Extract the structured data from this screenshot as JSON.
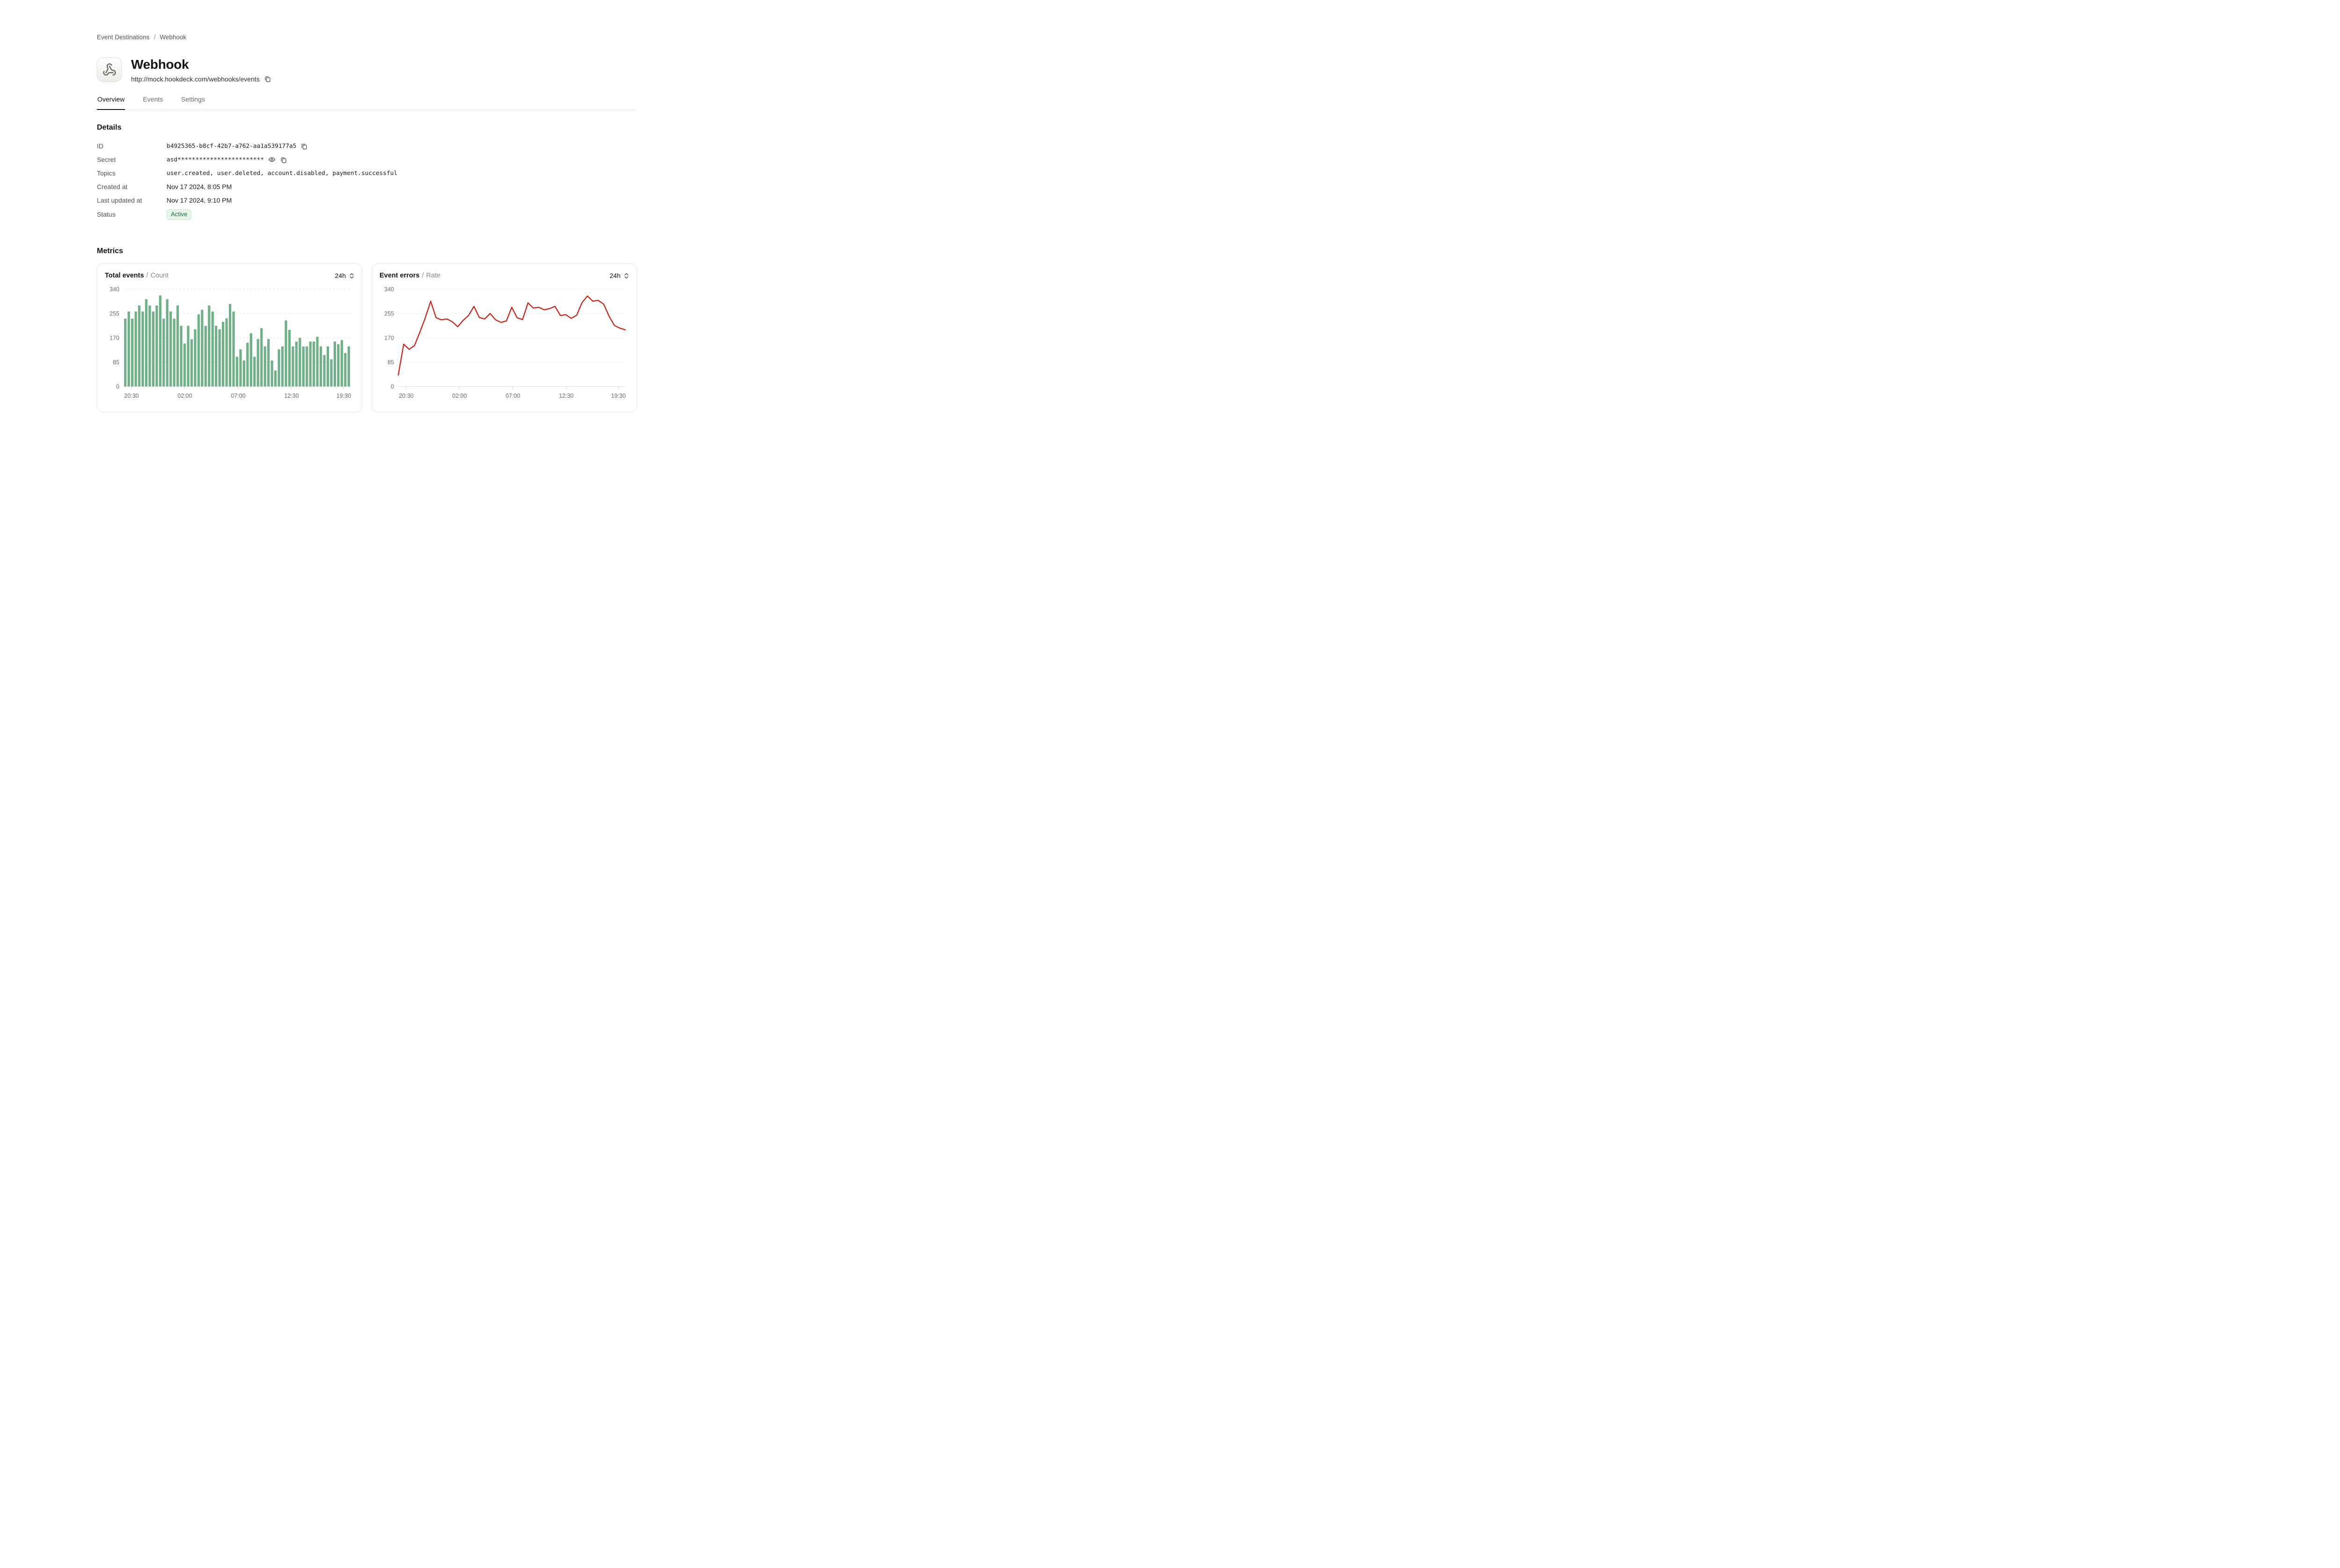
{
  "breadcrumb": {
    "items": [
      "Event Destinations",
      "Webhook"
    ],
    "separator": "/"
  },
  "header": {
    "title": "Webhook",
    "url": "http://mock.hookdeck.com/webhooks/events",
    "icon": "webhook-icon"
  },
  "tabs": [
    {
      "label": "Overview",
      "active": true
    },
    {
      "label": "Events",
      "active": false
    },
    {
      "label": "Settings",
      "active": false
    }
  ],
  "details": {
    "heading": "Details",
    "rows": {
      "id": {
        "label": "ID",
        "value": "b4925365-b8cf-42b7-a762-aa1a539177a5"
      },
      "secret": {
        "label": "Secret",
        "value": "asd************************"
      },
      "topics": {
        "label": "Topics",
        "value": "user.created, user.deleted, account.disabled, payment.successful"
      },
      "created_at": {
        "label": "Created at",
        "value": "Nov 17 2024, 8:05 PM"
      },
      "last_updated_at": {
        "label": "Last updated at",
        "value": "Nov 17 2024, 9:10 PM"
      },
      "status": {
        "label": "Status",
        "value": "Active"
      }
    }
  },
  "metrics": {
    "heading": "Metrics"
  },
  "colors": {
    "bar_green": "#6FB088",
    "line_red": "#C8291C",
    "grid": "#e4e3e0",
    "baseline": "#e9e8e5",
    "tick": "#dbdad6",
    "badge_green_text": "#17743b",
    "badge_green_bg": "#e6f4ea"
  },
  "chart_data": [
    {
      "type": "bar",
      "title": "Total events",
      "subtitle": "Count",
      "range": "24h",
      "color": "#6FB088",
      "ylim": [
        0,
        340
      ],
      "yticks": [
        0,
        85,
        170,
        255,
        340
      ],
      "grid": "dashed",
      "x_ticks": [
        {
          "label": "20:30",
          "pos": 0.035
        },
        {
          "label": "02:00",
          "pos": 0.27
        },
        {
          "label": "07:00",
          "pos": 0.505
        },
        {
          "label": "12:30",
          "pos": 0.74
        },
        {
          "label": "19:30",
          "pos": 0.97
        }
      ],
      "values": [
        237,
        262,
        237,
        262,
        283,
        262,
        305,
        283,
        262,
        283,
        318,
        237,
        305,
        262,
        237,
        283,
        212,
        150,
        212,
        165,
        200,
        252,
        268,
        212,
        283,
        262,
        212,
        200,
        226,
        238,
        288,
        262,
        104,
        130,
        91,
        153,
        186,
        104,
        166,
        204,
        140,
        166,
        91,
        56,
        130,
        140,
        231,
        198,
        140,
        157,
        170,
        140,
        140,
        157,
        157,
        174,
        140,
        110,
        140,
        95,
        157,
        148,
        162,
        117,
        140
      ]
    },
    {
      "type": "line",
      "title": "Event errors",
      "subtitle": "Rate",
      "range": "24h",
      "color": "#C8291C",
      "ylim": [
        0,
        340
      ],
      "yticks": [
        0,
        85,
        170,
        255,
        340
      ],
      "grid": "dashed",
      "x_ticks": [
        {
          "label": "20:30",
          "pos": 0.035
        },
        {
          "label": "02:00",
          "pos": 0.27
        },
        {
          "label": "07:00",
          "pos": 0.505
        },
        {
          "label": "12:30",
          "pos": 0.74
        },
        {
          "label": "19:30",
          "pos": 0.97
        }
      ],
      "values": [
        40,
        148,
        130,
        143,
        190,
        240,
        298,
        240,
        233,
        236,
        226,
        209,
        231,
        248,
        280,
        241,
        236,
        255,
        233,
        224,
        229,
        277,
        240,
        234,
        292,
        274,
        277,
        268,
        272,
        280,
        248,
        251,
        238,
        249,
        293,
        316,
        298,
        301,
        288,
        246,
        213,
        204,
        198
      ]
    }
  ]
}
